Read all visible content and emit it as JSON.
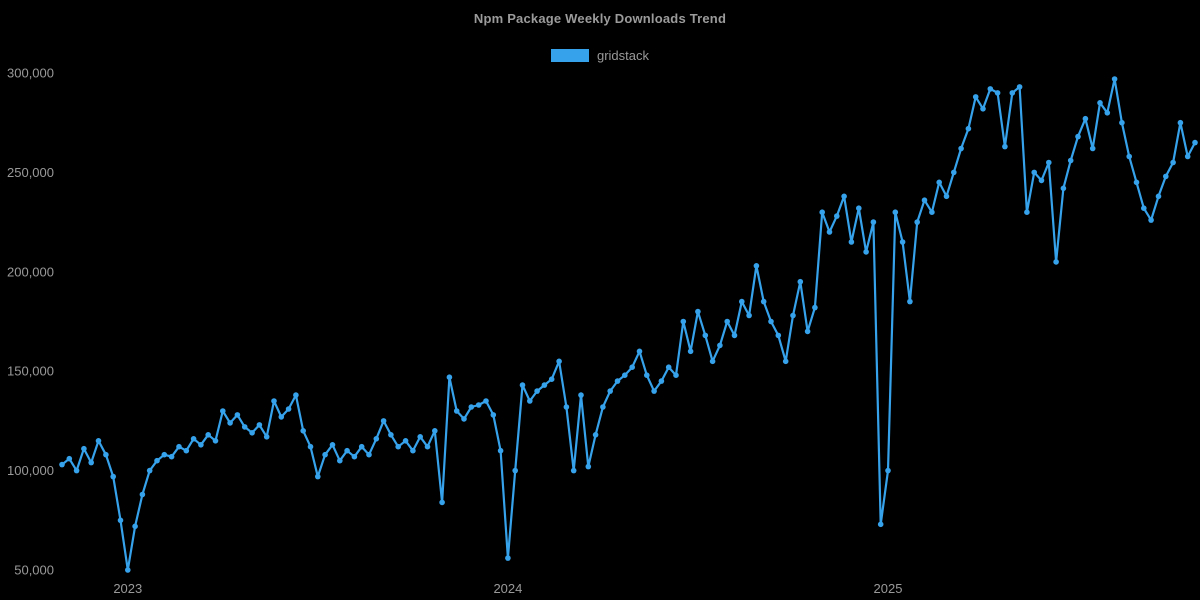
{
  "page": {
    "background": "#000000"
  },
  "header": {
    "title": "Npm Package Weekly Downloads Trend",
    "title_color": "#9b9b9b"
  },
  "legend": {
    "position": "top",
    "items": [
      {
        "label": "gridstack",
        "color": "#36a2eb"
      }
    ]
  },
  "chart_data": {
    "type": "line",
    "title": "Npm Package Weekly Downloads Trend",
    "background": "#000000",
    "grid": false,
    "legend_position": "top",
    "point_style": "circle",
    "x_axis": {
      "unit": "week",
      "tick_labels": [
        "2023",
        "2024",
        "2025"
      ],
      "tick_indices": [
        9,
        61,
        113
      ]
    },
    "y_axis": {
      "tick_labels": [
        "50,000",
        "100,000",
        "150,000",
        "200,000",
        "250,000",
        "300,000"
      ],
      "tick_values": [
        50000,
        100000,
        150000,
        200000,
        250000,
        300000
      ],
      "range": [
        50000,
        300000
      ]
    },
    "series": [
      {
        "name": "gridstack",
        "color": "#36a2eb",
        "values": [
          103000,
          106000,
          100000,
          111000,
          104000,
          115000,
          108000,
          97000,
          75000,
          50000,
          72000,
          88000,
          100000,
          105000,
          108000,
          107000,
          112000,
          110000,
          116000,
          113000,
          118000,
          115000,
          130000,
          124000,
          128000,
          122000,
          119000,
          123000,
          117000,
          135000,
          127000,
          131000,
          138000,
          120000,
          112000,
          97000,
          108000,
          113000,
          105000,
          110000,
          107000,
          112000,
          108000,
          116000,
          125000,
          118000,
          112000,
          115000,
          110000,
          117000,
          112000,
          120000,
          84000,
          147000,
          130000,
          126000,
          132000,
          133000,
          135000,
          128000,
          110000,
          56000,
          100000,
          143000,
          135000,
          140000,
          143000,
          146000,
          155000,
          132000,
          100000,
          138000,
          102000,
          118000,
          132000,
          140000,
          145000,
          148000,
          152000,
          160000,
          148000,
          140000,
          145000,
          152000,
          148000,
          175000,
          160000,
          180000,
          168000,
          155000,
          163000,
          175000,
          168000,
          185000,
          178000,
          203000,
          185000,
          175000,
          168000,
          155000,
          178000,
          195000,
          170000,
          182000,
          230000,
          220000,
          228000,
          238000,
          215000,
          232000,
          210000,
          225000,
          73000,
          100000,
          230000,
          215000,
          185000,
          225000,
          236000,
          230000,
          245000,
          238000,
          250000,
          262000,
          272000,
          288000,
          282000,
          292000,
          290000,
          263000,
          290000,
          293000,
          230000,
          250000,
          246000,
          255000,
          205000,
          242000,
          256000,
          268000,
          277000,
          262000,
          285000,
          280000,
          297000,
          275000,
          258000,
          245000,
          232000,
          226000,
          238000,
          248000,
          255000,
          275000,
          258000,
          265000
        ]
      }
    ]
  }
}
